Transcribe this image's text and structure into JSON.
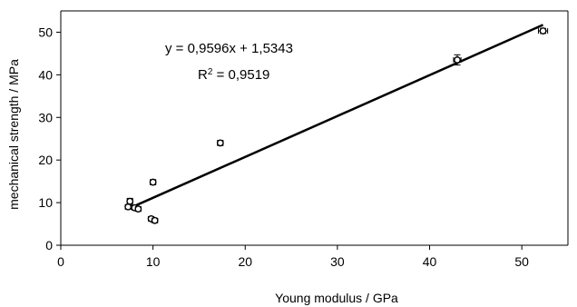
{
  "chart_data": {
    "type": "scatter",
    "xlabel": "Young modulus / GPa",
    "ylabel": "mechanical strength / MPa",
    "xlim": [
      0,
      55
    ],
    "ylim": [
      0,
      55
    ],
    "xticks": [
      0,
      10,
      20,
      30,
      40,
      50
    ],
    "yticks": [
      0,
      10,
      20,
      30,
      40,
      50
    ],
    "grid": false,
    "legend": "none",
    "points": [
      {
        "x": 7.3,
        "y": 9.0,
        "xerr": 0.3,
        "yerr": 0.5
      },
      {
        "x": 7.5,
        "y": 10.3,
        "xerr": 0.3,
        "yerr": 0.7
      },
      {
        "x": 8.0,
        "y": 8.8,
        "xerr": 0.3,
        "yerr": 0.5
      },
      {
        "x": 8.4,
        "y": 8.5,
        "xerr": 0.3,
        "yerr": 0.5
      },
      {
        "x": 9.8,
        "y": 6.2,
        "xerr": 0.3,
        "yerr": 0.5
      },
      {
        "x": 10.2,
        "y": 5.8,
        "xerr": 0.3,
        "yerr": 0.5
      },
      {
        "x": 10.0,
        "y": 14.8,
        "xerr": 0.3,
        "yerr": 0.6
      },
      {
        "x": 17.3,
        "y": 24.0,
        "xerr": 0.3,
        "yerr": 0.6
      },
      {
        "x": 43.0,
        "y": 43.5,
        "xerr": 0.4,
        "yerr": 1.2
      },
      {
        "x": 52.3,
        "y": 50.3,
        "xerr": 0.5,
        "yerr": 0.6
      }
    ],
    "fit": {
      "slope": 0.9596,
      "intercept": 1.5343,
      "x_range": [
        7.3,
        52.3
      ],
      "equation": "y = 0,9596x + 1,5343",
      "r2_prefix": "R",
      "r2_sup": "2",
      "r2_suffix": " = 0,9519"
    }
  }
}
